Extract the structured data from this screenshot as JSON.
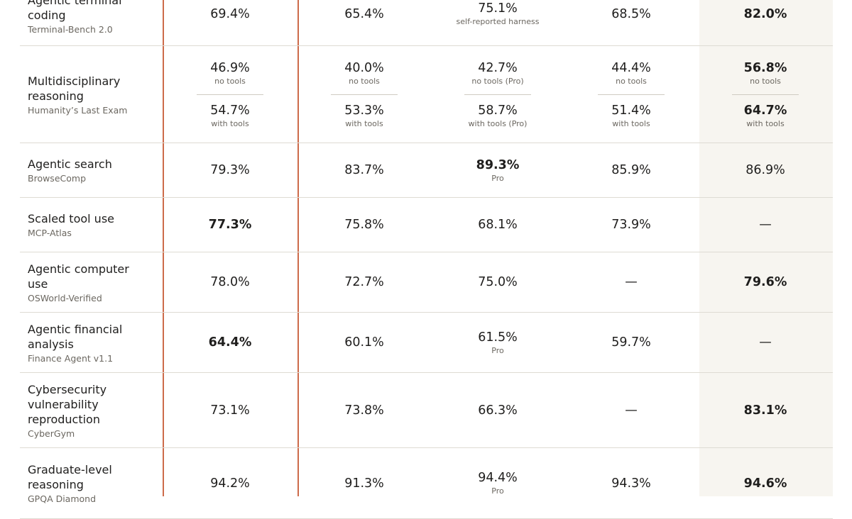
{
  "chart_data": {
    "type": "table",
    "rows": [
      {
        "task": "Agentic terminal coding",
        "bench": "Terminal-Bench 2.0",
        "cells": [
          {
            "v": "69.4%"
          },
          {
            "v": "65.4%"
          },
          {
            "v": "75.1%",
            "note": "self-reported harness"
          },
          {
            "v": "68.5%"
          },
          {
            "v": "82.0%",
            "best": true
          }
        ]
      },
      {
        "task": "Multidisciplinary reasoning",
        "bench": "Humanity’s Last Exam",
        "cells": [
          {
            "split": [
              {
                "v": "46.9%",
                "note": "no tools"
              },
              {
                "v": "54.7%",
                "note": "with tools"
              }
            ]
          },
          {
            "split": [
              {
                "v": "40.0%",
                "note": "no tools"
              },
              {
                "v": "53.3%",
                "note": "with tools"
              }
            ]
          },
          {
            "split": [
              {
                "v": "42.7%",
                "note": "no tools (Pro)"
              },
              {
                "v": "58.7%",
                "note": "with tools (Pro)"
              }
            ]
          },
          {
            "split": [
              {
                "v": "44.4%",
                "note": "no tools"
              },
              {
                "v": "51.4%",
                "note": "with tools"
              }
            ]
          },
          {
            "split": [
              {
                "v": "56.8%",
                "note": "no tools",
                "best": true
              },
              {
                "v": "64.7%",
                "note": "with tools",
                "best": true
              }
            ]
          }
        ]
      },
      {
        "task": "Agentic search",
        "bench": "BrowseComp",
        "cells": [
          {
            "v": "79.3%"
          },
          {
            "v": "83.7%"
          },
          {
            "v": "89.3%",
            "note": "Pro",
            "best": true
          },
          {
            "v": "85.9%"
          },
          {
            "v": "86.9%"
          }
        ]
      },
      {
        "task": "Scaled tool use",
        "bench": "MCP-Atlas",
        "cells": [
          {
            "v": "77.3%",
            "best": true
          },
          {
            "v": "75.8%"
          },
          {
            "v": "68.1%"
          },
          {
            "v": "73.9%"
          },
          {
            "v": "—"
          }
        ]
      },
      {
        "task": "Agentic computer use",
        "bench": "OSWorld-Verified",
        "cells": [
          {
            "v": "78.0%"
          },
          {
            "v": "72.7%"
          },
          {
            "v": "75.0%"
          },
          {
            "v": "—"
          },
          {
            "v": "79.6%",
            "best": true
          }
        ]
      },
      {
        "task": "Agentic financial analysis",
        "bench": "Finance Agent v1.1",
        "cells": [
          {
            "v": "64.4%",
            "best": true
          },
          {
            "v": "60.1%"
          },
          {
            "v": "61.5%",
            "note": "Pro"
          },
          {
            "v": "59.7%"
          },
          {
            "v": "—"
          }
        ]
      },
      {
        "task": "Cybersecurity vulnerability reproduction",
        "bench": "CyberGym",
        "cells": [
          {
            "v": "73.1%"
          },
          {
            "v": "73.8%"
          },
          {
            "v": "66.3%"
          },
          {
            "v": "—"
          },
          {
            "v": "83.1%",
            "best": true
          }
        ]
      },
      {
        "task": "Graduate-level reasoning",
        "bench": "GPQA Diamond",
        "cells": [
          {
            "v": "94.2%"
          },
          {
            "v": "91.3%"
          },
          {
            "v": "94.4%",
            "note": "Pro"
          },
          {
            "v": "94.3%"
          },
          {
            "v": "94.6%",
            "best": true
          }
        ]
      }
    ]
  },
  "colors": {
    "accent": "#cd6b4a",
    "highlight_column": "#f7f5f0",
    "rule": "#dedbd3"
  }
}
